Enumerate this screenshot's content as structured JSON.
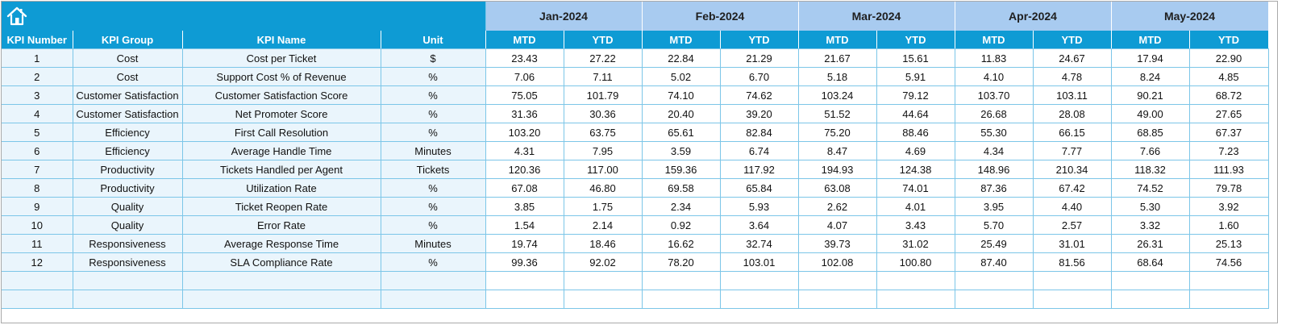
{
  "header": {
    "home_icon": "home-icon",
    "months": [
      "Jan-2024",
      "Feb-2024",
      "Mar-2024",
      "Apr-2024",
      "May-2024"
    ]
  },
  "columns": {
    "kpi_number": "KPI Number",
    "kpi_group": "KPI Group",
    "kpi_name": "KPI Name",
    "unit": "Unit",
    "mtd": "MTD",
    "ytd": "YTD"
  },
  "rows": [
    {
      "num": "1",
      "group": "Cost",
      "name": "Cost per Ticket",
      "unit": "$",
      "values": [
        "23.43",
        "27.22",
        "22.84",
        "21.29",
        "21.67",
        "15.61",
        "11.83",
        "24.67",
        "17.94",
        "22.90"
      ]
    },
    {
      "num": "2",
      "group": "Cost",
      "name": "Support Cost % of Revenue",
      "unit": "%",
      "values": [
        "7.06",
        "7.11",
        "5.02",
        "6.70",
        "5.18",
        "5.91",
        "4.10",
        "4.78",
        "8.24",
        "4.85"
      ]
    },
    {
      "num": "3",
      "group": "Customer Satisfaction",
      "name": "Customer Satisfaction Score",
      "unit": "%",
      "values": [
        "75.05",
        "101.79",
        "74.10",
        "74.62",
        "103.24",
        "79.12",
        "103.70",
        "103.11",
        "90.21",
        "68.72"
      ]
    },
    {
      "num": "4",
      "group": "Customer Satisfaction",
      "name": "Net Promoter Score",
      "unit": "%",
      "values": [
        "31.36",
        "30.36",
        "20.40",
        "39.20",
        "51.52",
        "44.64",
        "26.68",
        "28.08",
        "49.00",
        "27.65"
      ]
    },
    {
      "num": "5",
      "group": "Efficiency",
      "name": "First Call Resolution",
      "unit": "%",
      "values": [
        "103.20",
        "63.75",
        "65.61",
        "82.84",
        "75.20",
        "88.46",
        "55.30",
        "66.15",
        "68.85",
        "67.37"
      ]
    },
    {
      "num": "6",
      "group": "Efficiency",
      "name": "Average Handle Time",
      "unit": "Minutes",
      "values": [
        "4.31",
        "7.95",
        "3.59",
        "6.74",
        "8.47",
        "4.69",
        "4.34",
        "7.77",
        "7.66",
        "7.23"
      ]
    },
    {
      "num": "7",
      "group": "Productivity",
      "name": "Tickets Handled per Agent",
      "unit": "Tickets",
      "values": [
        "120.36",
        "117.00",
        "159.36",
        "117.92",
        "194.93",
        "124.38",
        "148.96",
        "210.34",
        "118.32",
        "111.93"
      ]
    },
    {
      "num": "8",
      "group": "Productivity",
      "name": "Utilization Rate",
      "unit": "%",
      "values": [
        "67.08",
        "46.80",
        "69.58",
        "65.84",
        "63.08",
        "74.01",
        "87.36",
        "67.42",
        "74.52",
        "79.78"
      ]
    },
    {
      "num": "9",
      "group": "Quality",
      "name": "Ticket Reopen Rate",
      "unit": "%",
      "values": [
        "3.85",
        "1.75",
        "2.34",
        "5.93",
        "2.62",
        "4.01",
        "3.95",
        "4.40",
        "5.30",
        "3.92"
      ]
    },
    {
      "num": "10",
      "group": "Quality",
      "name": "Error Rate",
      "unit": "%",
      "values": [
        "1.54",
        "2.14",
        "0.92",
        "3.64",
        "4.07",
        "3.43",
        "5.70",
        "2.57",
        "3.32",
        "1.60"
      ]
    },
    {
      "num": "11",
      "group": "Responsiveness",
      "name": "Average Response Time",
      "unit": "Minutes",
      "values": [
        "19.74",
        "18.46",
        "16.62",
        "32.74",
        "39.73",
        "31.02",
        "25.49",
        "31.01",
        "26.31",
        "25.13"
      ]
    },
    {
      "num": "12",
      "group": "Responsiveness",
      "name": "SLA Compliance Rate",
      "unit": "%",
      "values": [
        "99.36",
        "92.02",
        "78.20",
        "103.01",
        "102.08",
        "100.80",
        "87.40",
        "81.56",
        "68.64",
        "74.56"
      ]
    },
    {
      "num": "",
      "group": "",
      "name": "",
      "unit": "",
      "values": [
        "",
        "",
        "",
        "",
        "",
        "",
        "",
        "",
        "",
        ""
      ]
    },
    {
      "num": "",
      "group": "",
      "name": "",
      "unit": "",
      "values": [
        "",
        "",
        "",
        "",
        "",
        "",
        "",
        "",
        "",
        ""
      ]
    }
  ],
  "colors": {
    "header_blue": "#0e9bd4",
    "month_band": "#a8cbf0",
    "meta_cell": "#eaf5fc",
    "grid_line": "#7cc6e8"
  }
}
